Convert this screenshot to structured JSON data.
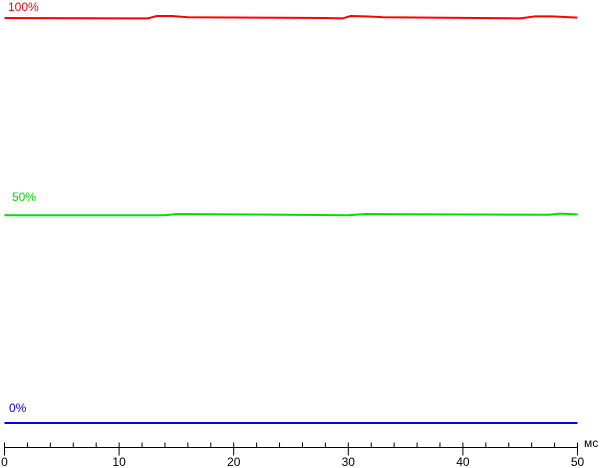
{
  "chart_data": {
    "type": "line",
    "title": "",
    "xlabel": "мс",
    "ylabel": "",
    "xlim": [
      0,
      50
    ],
    "ylim": [
      0,
      100
    ],
    "x_ticks": [
      "0",
      "10",
      "20",
      "30",
      "40",
      "50"
    ],
    "x_minor_step": 2,
    "grid": false,
    "series": [
      {
        "name": "100%",
        "color": "#ff0000",
        "points": [
          [
            0,
            100
          ],
          [
            12.5,
            99.9
          ],
          [
            13.3,
            100.5
          ],
          [
            14.6,
            100.5
          ],
          [
            16,
            100.2
          ],
          [
            28,
            100
          ],
          [
            29.5,
            99.9
          ],
          [
            30.2,
            100.5
          ],
          [
            31.5,
            100.4
          ],
          [
            33,
            100.2
          ],
          [
            45,
            99.9
          ],
          [
            46.3,
            100.4
          ],
          [
            47.8,
            100.4
          ],
          [
            50,
            100.1
          ]
        ]
      },
      {
        "name": "50%",
        "color": "#00e000",
        "points": [
          [
            0,
            51.3
          ],
          [
            14,
            51.3
          ],
          [
            15,
            51.6
          ],
          [
            30,
            51.3
          ],
          [
            31.5,
            51.6
          ],
          [
            47.5,
            51.4
          ],
          [
            48.5,
            51.7
          ],
          [
            50,
            51.5
          ]
        ]
      },
      {
        "name": "0%",
        "color": "#0000ff",
        "points": [
          [
            0,
            0
          ],
          [
            50,
            0
          ]
        ]
      }
    ]
  }
}
